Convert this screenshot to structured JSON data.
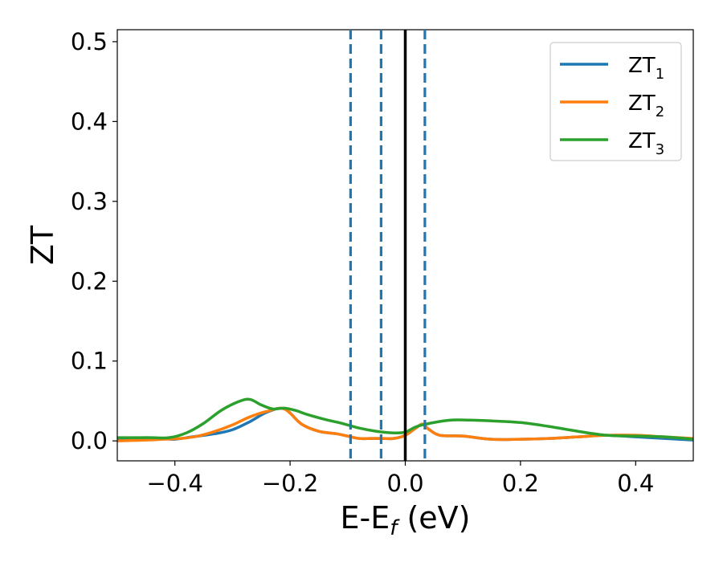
{
  "chart_data": {
    "type": "line",
    "title": "",
    "xlabel": "E-E",
    "xlabel_sub": "f",
    "xlabel_unit": " (eV)",
    "ylabel": "ZT",
    "xlim": [
      -0.5,
      0.5
    ],
    "ylim": [
      -0.025,
      0.515
    ],
    "xticks": [
      -0.4,
      -0.2,
      0.0,
      0.2,
      0.4
    ],
    "xtick_labels": [
      "−0.4",
      "−0.2",
      "0.0",
      "0.2",
      "0.4"
    ],
    "yticks": [
      0.0,
      0.1,
      0.2,
      0.3,
      0.4,
      0.5
    ],
    "ytick_labels": [
      "0.0",
      "0.1",
      "0.2",
      "0.3",
      "0.4",
      "0.5"
    ],
    "grid": false,
    "legend_position": "top-right",
    "vlines": [
      {
        "x": -0.095,
        "style": "dashed",
        "color": "#1f77b4"
      },
      {
        "x": -0.042,
        "style": "dashed",
        "color": "#1f77b4"
      },
      {
        "x": 0.0,
        "style": "solid",
        "color": "#000000"
      },
      {
        "x": 0.034,
        "style": "dashed",
        "color": "#1f77b4"
      }
    ],
    "series": [
      {
        "name": "ZT",
        "name_sub": "1",
        "color": "#1f77b4",
        "x": [
          -0.5,
          -0.45,
          -0.42,
          -0.4,
          -0.37,
          -0.33,
          -0.3,
          -0.27,
          -0.24,
          -0.21,
          -0.18,
          -0.15,
          -0.12,
          -0.1,
          -0.08,
          -0.06,
          -0.04,
          -0.02,
          0.0,
          0.02,
          0.03,
          0.04,
          0.06,
          0.1,
          0.15,
          0.2,
          0.25,
          0.3,
          0.35,
          0.4,
          0.45,
          0.5
        ],
        "y": [
          0.003,
          0.004,
          0.003,
          0.002,
          0.005,
          0.009,
          0.014,
          0.024,
          0.036,
          0.04,
          0.021,
          0.012,
          0.009,
          0.006,
          0.003,
          0.003,
          0.003,
          0.003,
          0.007,
          0.017,
          0.021,
          0.015,
          0.007,
          0.006,
          0.002,
          0.002,
          0.003,
          0.005,
          0.007,
          0.005,
          0.003,
          0.001
        ]
      },
      {
        "name": "ZT",
        "name_sub": "2",
        "color": "#ff7f0e",
        "x": [
          -0.5,
          -0.45,
          -0.42,
          -0.39,
          -0.36,
          -0.33,
          -0.3,
          -0.27,
          -0.24,
          -0.21,
          -0.18,
          -0.15,
          -0.12,
          -0.1,
          -0.08,
          -0.06,
          -0.04,
          -0.02,
          0.0,
          0.02,
          0.03,
          0.04,
          0.06,
          0.1,
          0.15,
          0.2,
          0.25,
          0.3,
          0.35,
          0.4,
          0.45,
          0.5
        ],
        "y": [
          0.0,
          0.001,
          0.002,
          0.003,
          0.006,
          0.012,
          0.02,
          0.03,
          0.037,
          0.04,
          0.021,
          0.012,
          0.009,
          0.006,
          0.003,
          0.003,
          0.003,
          0.003,
          0.007,
          0.017,
          0.021,
          0.015,
          0.007,
          0.006,
          0.002,
          0.002,
          0.003,
          0.005,
          0.007,
          0.007,
          0.005,
          0.003
        ]
      },
      {
        "name": "ZT",
        "name_sub": "3",
        "color": "#2ca02c",
        "x": [
          -0.5,
          -0.47,
          -0.44,
          -0.41,
          -0.38,
          -0.35,
          -0.32,
          -0.29,
          -0.27,
          -0.25,
          -0.23,
          -0.21,
          -0.19,
          -0.17,
          -0.14,
          -0.11,
          -0.08,
          -0.05,
          -0.02,
          0.0,
          0.02,
          0.05,
          0.08,
          0.11,
          0.15,
          0.2,
          0.25,
          0.3,
          0.35,
          0.4,
          0.45,
          0.5
        ],
        "y": [
          0.004,
          0.004,
          0.004,
          0.004,
          0.01,
          0.022,
          0.038,
          0.049,
          0.052,
          0.045,
          0.04,
          0.041,
          0.038,
          0.033,
          0.027,
          0.022,
          0.016,
          0.012,
          0.01,
          0.011,
          0.018,
          0.023,
          0.026,
          0.026,
          0.025,
          0.023,
          0.018,
          0.012,
          0.007,
          0.006,
          0.005,
          0.002
        ]
      }
    ]
  }
}
